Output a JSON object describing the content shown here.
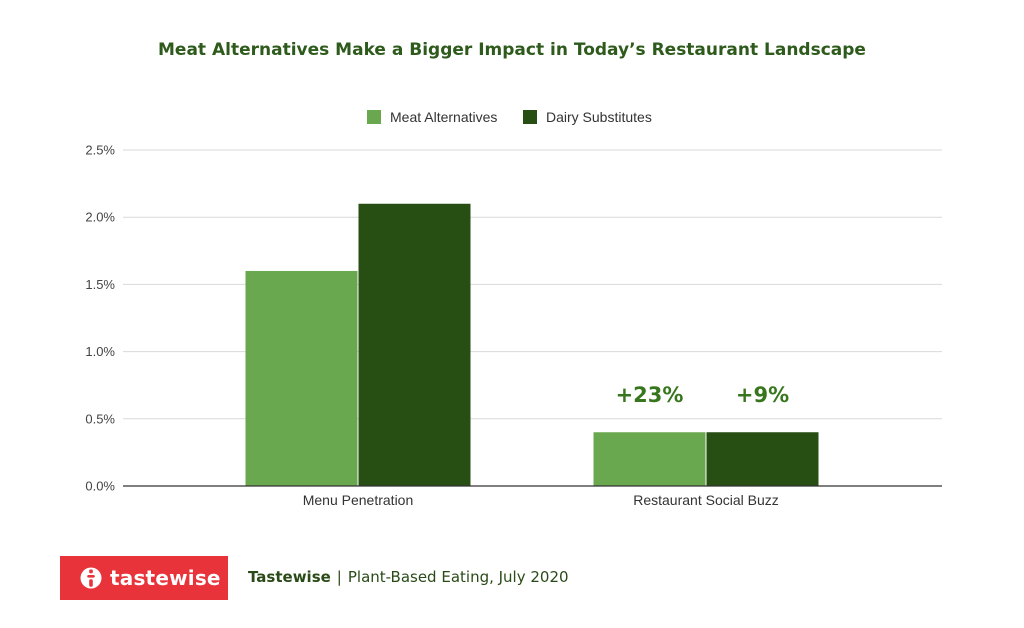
{
  "colors": {
    "title": "#2e5a1c",
    "meat": "#6aa84f",
    "dairy": "#274e13",
    "grid": "#d9d9d9",
    "axis": "#333333",
    "annotation": "#38761d",
    "logo_bg": "#e8333a",
    "footer_text": "#2a4a17"
  },
  "chart_data": {
    "type": "bar",
    "title": "Meat Alternatives Make a Bigger Impact in Today’s Restaurant Landscape",
    "categories": [
      "Menu Penetration",
      "Restaurant Social Buzz"
    ],
    "series": [
      {
        "name": "Meat Alternatives",
        "values": [
          1.6,
          0.4
        ]
      },
      {
        "name": "Dairy Substitutes",
        "values": [
          2.1,
          0.4
        ]
      }
    ],
    "y_ticks": [
      "0.0%",
      "0.5%",
      "1.0%",
      "1.5%",
      "2.0%",
      "2.5%"
    ],
    "ylim": [
      0,
      2.5
    ],
    "grid": true,
    "legend": "top-center",
    "annotations": [
      {
        "text": "+23%",
        "category": "Restaurant Social Buzz",
        "series": "Meat Alternatives"
      },
      {
        "text": "+9%",
        "category": "Restaurant Social Buzz",
        "series": "Dairy Substitutes"
      }
    ]
  },
  "footer": {
    "logo_text": "tastewise",
    "logo_icon": "tastewise-logo-icon",
    "source_brand": "Tastewise",
    "separator": "|",
    "source_text": "Plant-Based Eating, July 2020"
  }
}
